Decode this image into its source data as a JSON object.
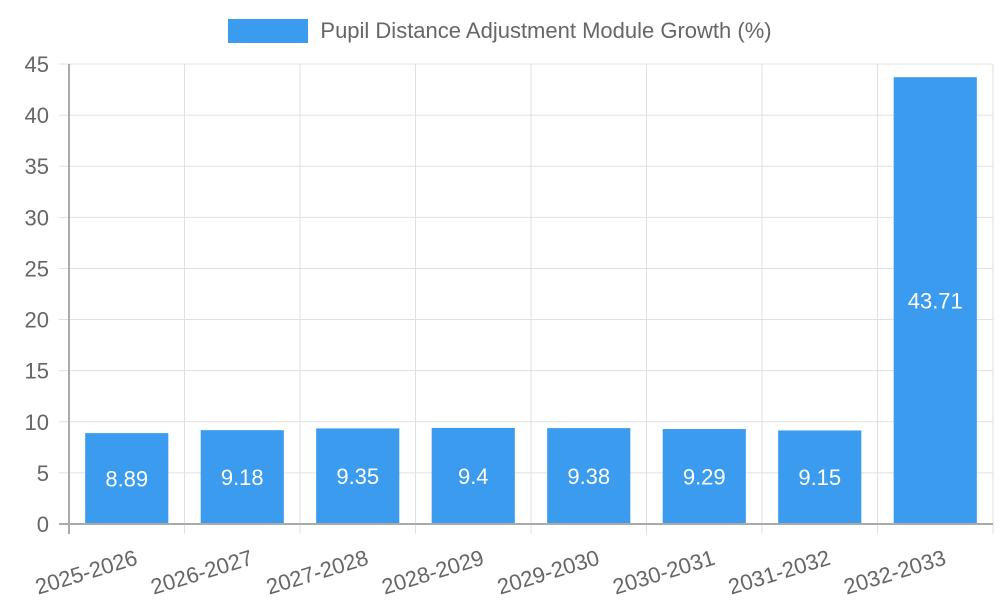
{
  "chart_data": {
    "type": "bar",
    "title": "",
    "legend": [
      {
        "label": "Pupil Distance Adjustment Module Growth (%)",
        "color": "#3a9bef"
      }
    ],
    "legend_position": "top",
    "categories": [
      "2025-2026",
      "2026-2027",
      "2027-2028",
      "2028-2029",
      "2029-2030",
      "2030-2031",
      "2031-2032",
      "2032-2033"
    ],
    "series": [
      {
        "name": "Pupil Distance Adjustment Module Growth (%)",
        "values": [
          8.89,
          9.18,
          9.35,
          9.4,
          9.38,
          9.29,
          9.15,
          43.71
        ],
        "color": "#3a9bef"
      }
    ],
    "data_labels": [
      "8.89",
      "9.18",
      "9.35",
      "9.4",
      "9.38",
      "9.29",
      "9.15",
      "43.71"
    ],
    "xlabel": "",
    "ylabel": "",
    "ylim": [
      0,
      45
    ],
    "yticks": [
      "0",
      "5",
      "10",
      "15",
      "20",
      "25",
      "30",
      "35",
      "40",
      "45"
    ],
    "grid": true
  }
}
